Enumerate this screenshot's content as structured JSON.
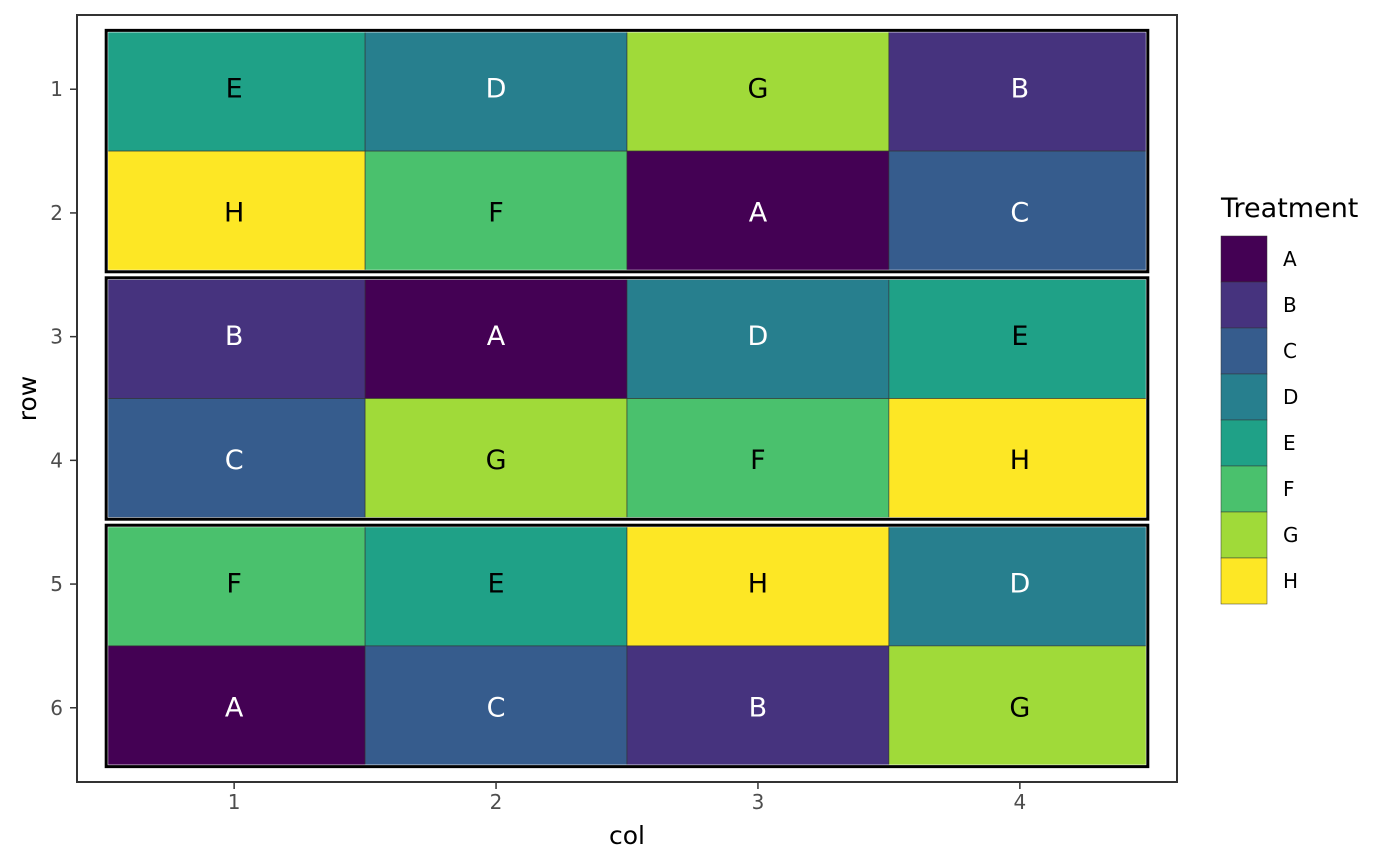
{
  "chart_data": {
    "type": "heatmap",
    "title": "",
    "xlabel": "col",
    "ylabel": "row",
    "x_ticks": [
      "1",
      "2",
      "3",
      "4"
    ],
    "y_ticks": [
      "1",
      "2",
      "3",
      "4",
      "5",
      "6"
    ],
    "grid": false,
    "legend": {
      "title": "Treatment",
      "placement": "right",
      "entries": [
        "A",
        "B",
        "C",
        "D",
        "E",
        "F",
        "G",
        "H"
      ]
    },
    "treatment_colors": {
      "A": "#440154",
      "B": "#46337E",
      "C": "#365C8D",
      "D": "#277F8E",
      "E": "#1FA187",
      "F": "#4AC16D",
      "G": "#A0DA39",
      "H": "#FDE725"
    },
    "label_colors": {
      "A": "#ffffff",
      "B": "#ffffff",
      "C": "#ffffff",
      "D": "#ffffff",
      "E": "#000000",
      "F": "#000000",
      "G": "#000000",
      "H": "#000000"
    },
    "cells": [
      [
        "E",
        "D",
        "G",
        "B"
      ],
      [
        "H",
        "F",
        "A",
        "C"
      ],
      [
        "B",
        "A",
        "D",
        "E"
      ],
      [
        "C",
        "G",
        "F",
        "H"
      ],
      [
        "F",
        "E",
        "H",
        "D"
      ],
      [
        "A",
        "C",
        "B",
        "G"
      ]
    ],
    "blocks": [
      {
        "rows": [
          1,
          2
        ]
      },
      {
        "rows": [
          3,
          4
        ]
      },
      {
        "rows": [
          5,
          6
        ]
      }
    ]
  }
}
